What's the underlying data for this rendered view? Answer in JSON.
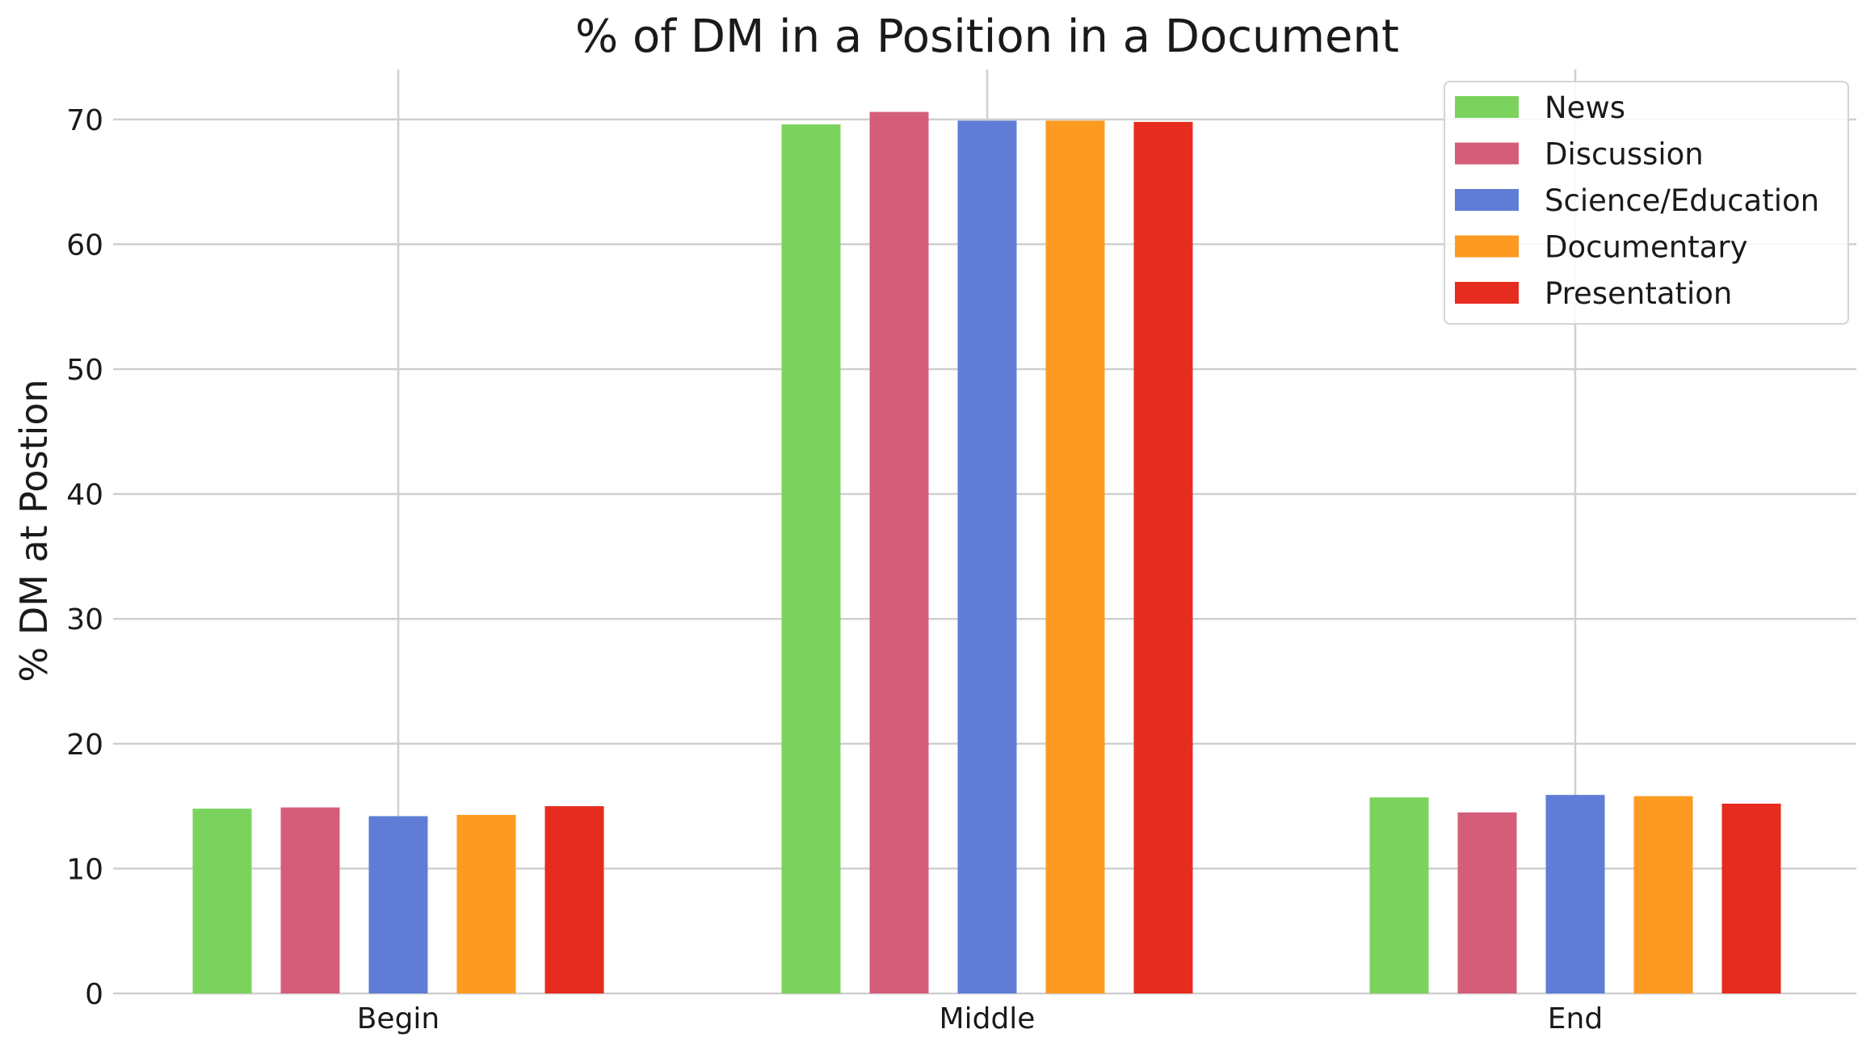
{
  "chart_data": {
    "type": "bar",
    "title": "% of DM in a Position in a Document",
    "xlabel": "",
    "ylabel": "% DM at Postion",
    "categories": [
      "Begin",
      "Middle",
      "End"
    ],
    "ylim": [
      0,
      74
    ],
    "yticks": [
      0,
      10,
      20,
      30,
      40,
      50,
      60,
      70
    ],
    "grid": true,
    "legend_position": "top-right",
    "series": [
      {
        "name": "News",
        "color": "#7bd35e",
        "values": [
          14.8,
          69.6,
          15.7
        ]
      },
      {
        "name": "Discussion",
        "color": "#d45e7a",
        "values": [
          14.9,
          70.6,
          14.5
        ]
      },
      {
        "name": "Science/Education",
        "color": "#5f7dd7",
        "values": [
          14.2,
          69.9,
          15.9
        ]
      },
      {
        "name": "Documentary",
        "color": "#fd9a21",
        "values": [
          14.3,
          69.9,
          15.8
        ]
      },
      {
        "name": "Presentation",
        "color": "#e62c1f",
        "values": [
          15.0,
          69.8,
          15.2
        ]
      }
    ]
  }
}
